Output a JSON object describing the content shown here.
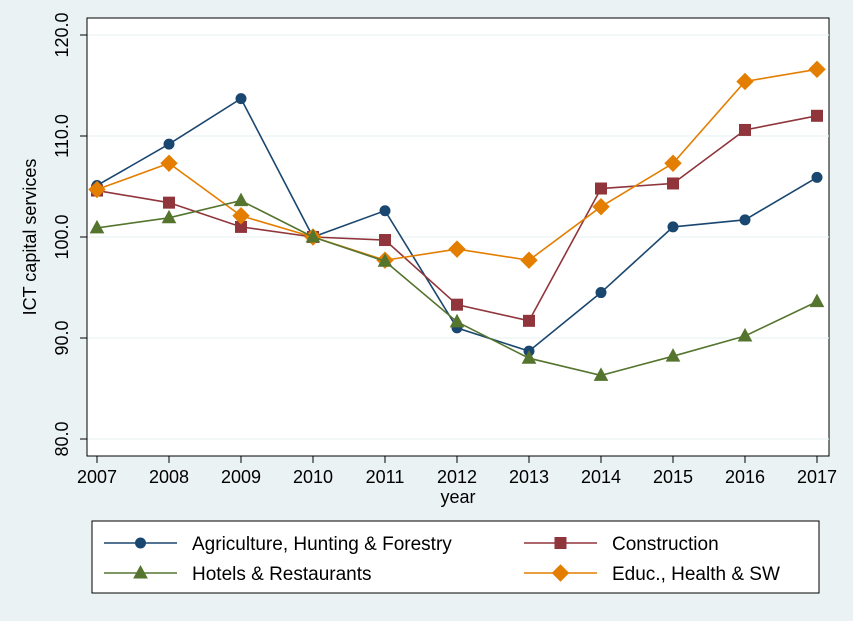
{
  "chart_data": {
    "type": "line",
    "xlabel": "year",
    "ylabel": "ICT capital services",
    "x": [
      2007,
      2008,
      2009,
      2010,
      2011,
      2012,
      2013,
      2014,
      2015,
      2016,
      2017
    ],
    "x_tick_labels": [
      "2007",
      "2008",
      "2009",
      "2010",
      "2011",
      "2012",
      "2013",
      "2014",
      "2015",
      "2016",
      "2017"
    ],
    "ylim": [
      80,
      120
    ],
    "y_ticks": [
      80,
      90,
      100,
      110,
      120
    ],
    "y_tick_labels": [
      "80.0",
      "90.0",
      "100.0",
      "110.0",
      "120.0"
    ],
    "grid": true,
    "legend_position": "bottom",
    "series": [
      {
        "name": "Agriculture, Hunting & Forestry",
        "color": "#1a476f",
        "marker": "circle",
        "values": [
          105.1,
          109.2,
          113.7,
          100.0,
          102.6,
          91.0,
          88.7,
          94.5,
          101.0,
          101.7,
          105.9
        ]
      },
      {
        "name": "Construction",
        "color": "#90353b",
        "marker": "square",
        "values": [
          104.6,
          103.4,
          101.0,
          100.0,
          99.7,
          93.3,
          91.7,
          104.8,
          105.3,
          110.6,
          112.0
        ]
      },
      {
        "name": "Hotels & Restaurants",
        "color": "#55752f",
        "marker": "triangle",
        "values": [
          100.9,
          101.9,
          103.6,
          100.0,
          97.6,
          91.6,
          88.0,
          86.3,
          88.2,
          90.2,
          93.6
        ]
      },
      {
        "name": "Educ., Health & SW",
        "color": "#e37e00",
        "marker": "diamond",
        "values": [
          104.7,
          107.3,
          102.1,
          100.0,
          97.7,
          98.8,
          97.7,
          103.0,
          107.3,
          115.4,
          116.6
        ]
      }
    ]
  }
}
